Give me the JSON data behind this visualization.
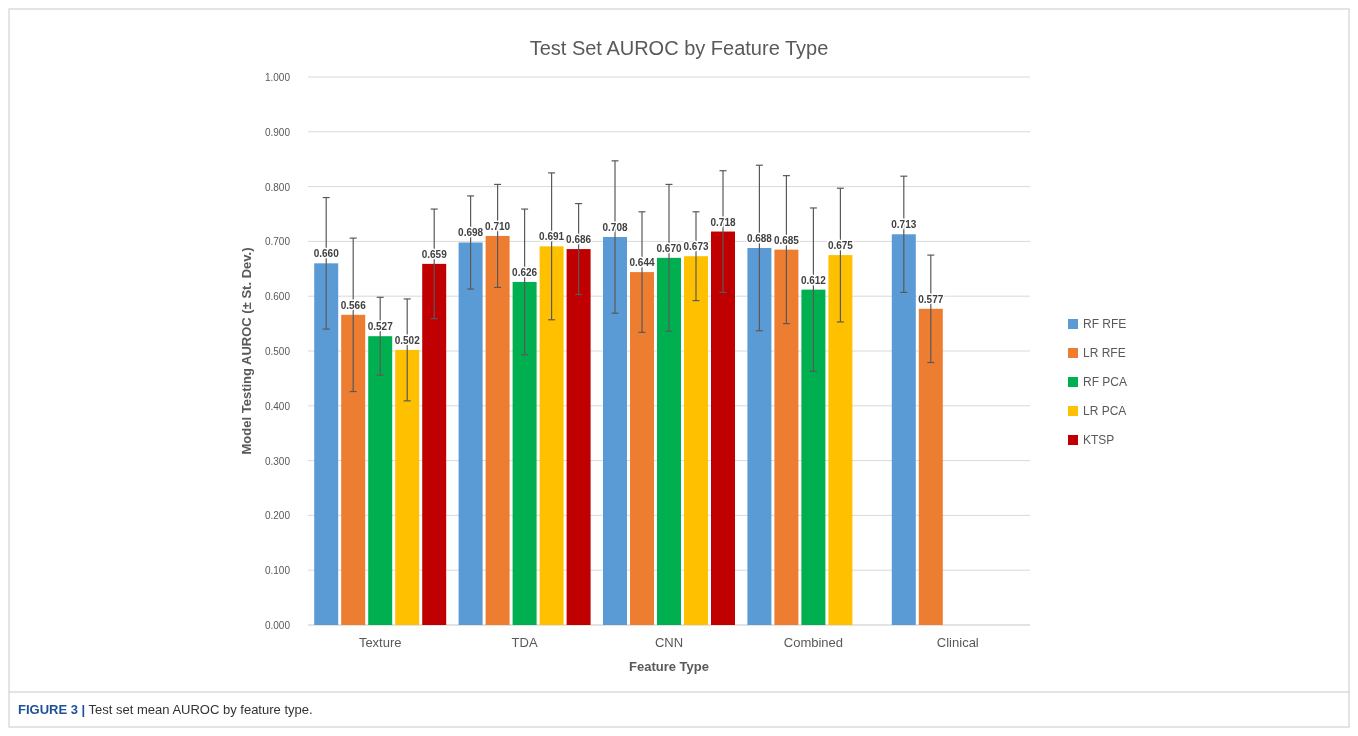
{
  "chart_data": {
    "type": "bar",
    "title": "Test Set AUROC by Feature Type",
    "xlabel": "Feature Type",
    "ylabel": "Model Testing AUROC (± St. Dev.)",
    "categories": [
      "Texture",
      "TDA",
      "CNN",
      "Combined",
      "Clinical"
    ],
    "series": [
      {
        "name": "RF RFE",
        "color": "#5b9bd5",
        "values": [
          0.66,
          0.698,
          0.708,
          0.688,
          0.713
        ],
        "value_labels": [
          "0.660",
          "0.698",
          "0.708",
          "0.688",
          "0.713"
        ],
        "errors": [
          0.12,
          0.085,
          0.139,
          0.151,
          0.106
        ]
      },
      {
        "name": "LR RFE",
        "color": "#ed7d31",
        "values": [
          0.566,
          0.71,
          0.644,
          0.685,
          0.577
        ],
        "value_labels": [
          "0.566",
          "0.710",
          "0.644",
          "0.685",
          "0.577"
        ],
        "errors": [
          0.14,
          0.094,
          0.11,
          0.135,
          0.098
        ]
      },
      {
        "name": "RF PCA",
        "color": "#00b050",
        "values": [
          0.527,
          0.626,
          0.67,
          0.612,
          null
        ],
        "value_labels": [
          "0.527",
          "0.626",
          "0.670",
          "0.612",
          null
        ],
        "errors": [
          0.071,
          0.133,
          0.134,
          0.149,
          null
        ]
      },
      {
        "name": "LR PCA",
        "color": "#ffc000",
        "values": [
          0.502,
          0.691,
          0.673,
          0.675,
          null
        ],
        "value_labels": [
          "0.502",
          "0.691",
          "0.673",
          "0.675",
          null
        ],
        "errors": [
          0.093,
          0.134,
          0.081,
          0.122,
          null
        ]
      },
      {
        "name": "KTSP",
        "color": "#c00000",
        "values": [
          0.659,
          0.686,
          0.718,
          null,
          null
        ],
        "value_labels": [
          "0.659",
          "0.686",
          "0.718",
          null,
          null
        ],
        "errors": [
          0.1,
          0.083,
          0.111,
          null,
          null
        ]
      }
    ],
    "ylim": [
      0,
      1
    ],
    "yticks": [
      {
        "value": 0,
        "label": "0.000"
      },
      {
        "value": 0.1,
        "label": "0.100"
      },
      {
        "value": 0.2,
        "label": "0.200"
      },
      {
        "value": 0.3,
        "label": "0.300"
      },
      {
        "value": 0.4,
        "label": "0.400"
      },
      {
        "value": 0.5,
        "label": "0.500"
      },
      {
        "value": 0.6,
        "label": "0.600"
      },
      {
        "value": 0.7,
        "label": "0.700"
      },
      {
        "value": 0.8,
        "label": "0.800"
      },
      {
        "value": 0.9,
        "label": "0.900"
      },
      {
        "value": 1,
        "label": "1.000"
      }
    ],
    "grid": "y",
    "legend": "right",
    "annotations": [
      "FIGURE 3 | Test set mean AUROC by feature type."
    ]
  }
}
